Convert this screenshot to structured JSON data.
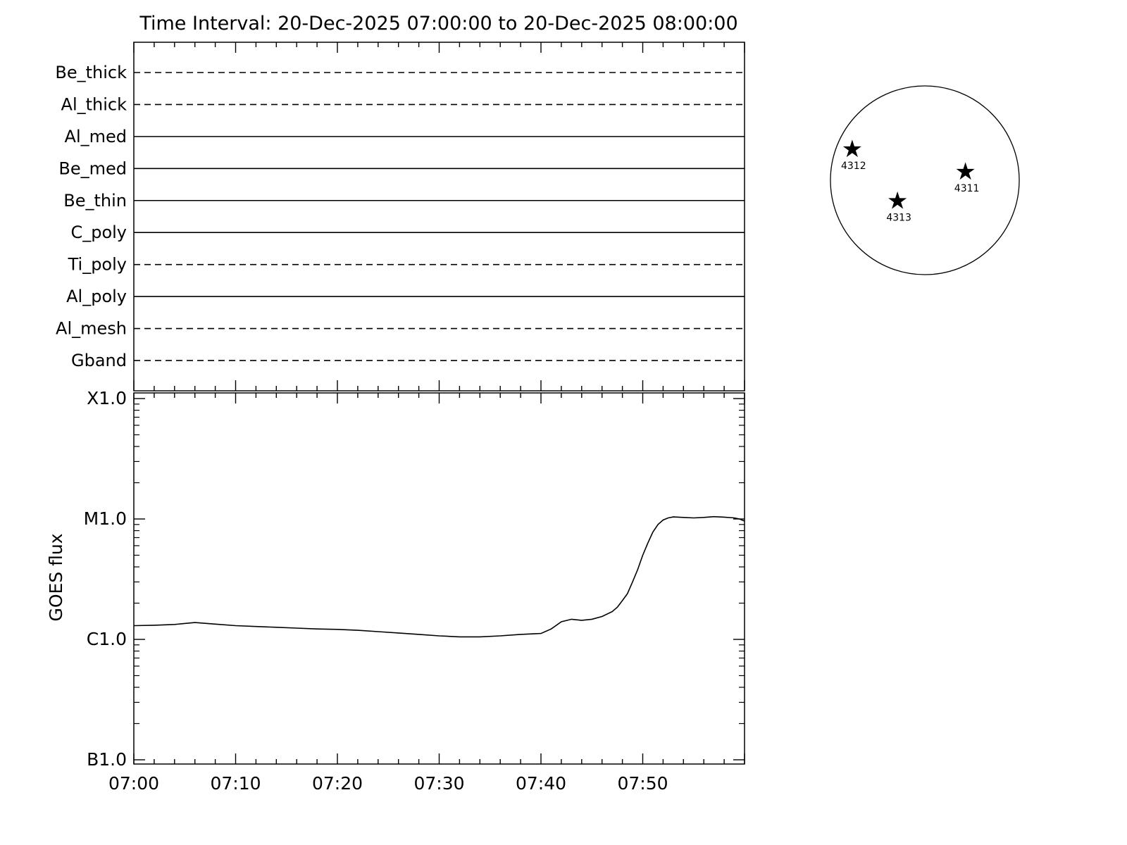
{
  "title": "Time Interval: 20-Dec-2025 07:00:00 to 20-Dec-2025 08:00:00",
  "filter_panel": {
    "items": [
      {
        "name": "Be_thick",
        "line_style": "dashed"
      },
      {
        "name": "Al_thick",
        "line_style": "dashed"
      },
      {
        "name": "Al_med",
        "line_style": "solid"
      },
      {
        "name": "Be_med",
        "line_style": "solid"
      },
      {
        "name": "Be_thin",
        "line_style": "solid"
      },
      {
        "name": "C_poly",
        "line_style": "solid"
      },
      {
        "name": "Ti_poly",
        "line_style": "dashed"
      },
      {
        "name": "Al_poly",
        "line_style": "solid"
      },
      {
        "name": "Al_mesh",
        "line_style": "dashed"
      },
      {
        "name": "Gband",
        "line_style": "dashed"
      }
    ]
  },
  "goes_panel": {
    "ylabel": "GOES flux",
    "ytick_labels": [
      "X1.0",
      "M1.0",
      "C1.0",
      "B1.0"
    ],
    "xtick_labels": [
      "07:00",
      "07:10",
      "07:20",
      "07:30",
      "07:40",
      "07:50"
    ]
  },
  "solar_disk": {
    "star_glyph": "★",
    "star_color": "#dd0000",
    "regions": [
      {
        "label": "4312",
        "fx": -0.77,
        "fy": -0.33
      },
      {
        "label": "4311",
        "fx": 0.43,
        "fy": -0.09
      },
      {
        "label": "4313",
        "fx": -0.29,
        "fy": 0.22
      }
    ]
  },
  "chart_data": {
    "type": "line",
    "title": "Time Interval: 20-Dec-2025 07:00:00 to 20-Dec-2025 08:00:00",
    "ylabel": "GOES flux",
    "yscale": "log",
    "ylim_wm2": [
      1e-07,
      0.0001
    ],
    "ytick_labels_top_to_bottom": [
      "X1.0",
      "M1.0",
      "C1.0",
      "B1.0"
    ],
    "xtick_labels": [
      "07:00",
      "07:10",
      "07:20",
      "07:30",
      "07:40",
      "07:50"
    ],
    "x_minutes_after_0700": [
      0,
      2,
      4,
      6,
      7,
      8,
      10,
      12,
      14,
      16,
      18,
      20,
      22,
      24,
      26,
      28,
      30,
      32,
      34,
      36,
      38,
      40,
      41,
      42,
      43,
      44,
      45,
      46,
      47,
      47.5,
      48,
      48.5,
      49,
      49.5,
      50,
      50.5,
      51,
      51.5,
      52,
      52.5,
      53,
      54,
      55,
      56,
      57,
      57.5,
      58,
      59,
      59.5,
      60
    ],
    "flux_c_units": [
      1.3,
      1.31,
      1.33,
      1.38,
      1.36,
      1.34,
      1.3,
      1.28,
      1.26,
      1.24,
      1.22,
      1.21,
      1.19,
      1.16,
      1.13,
      1.1,
      1.07,
      1.05,
      1.05,
      1.07,
      1.1,
      1.12,
      1.22,
      1.4,
      1.47,
      1.44,
      1.47,
      1.55,
      1.7,
      1.85,
      2.1,
      2.4,
      3.0,
      3.8,
      5.0,
      6.3,
      7.8,
      9.0,
      9.8,
      10.2,
      10.4,
      10.3,
      10.2,
      10.3,
      10.45,
      10.4,
      10.35,
      10.2,
      10.0,
      9.6
    ],
    "flux_units": "1e-6 W/m^2 (C1.0 = 1, M1.0 = 10)"
  }
}
